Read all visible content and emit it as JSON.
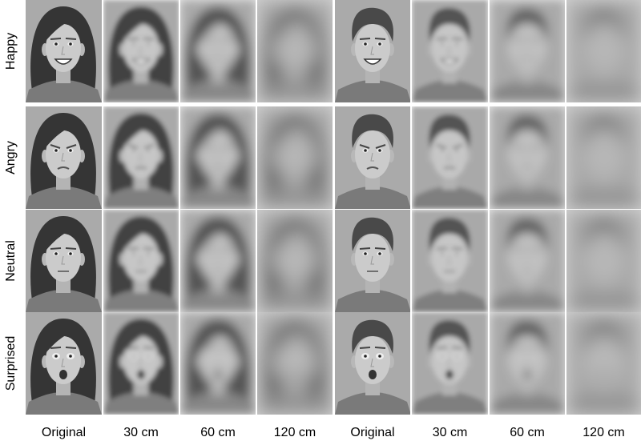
{
  "row_labels": [
    "Happy",
    "Angry",
    "Neutral",
    "Surprised"
  ],
  "column_labels": [
    "Original",
    "30 cm",
    "60 cm",
    "120 cm",
    "Original",
    "30 cm",
    "60 cm",
    "120 cm"
  ]
}
